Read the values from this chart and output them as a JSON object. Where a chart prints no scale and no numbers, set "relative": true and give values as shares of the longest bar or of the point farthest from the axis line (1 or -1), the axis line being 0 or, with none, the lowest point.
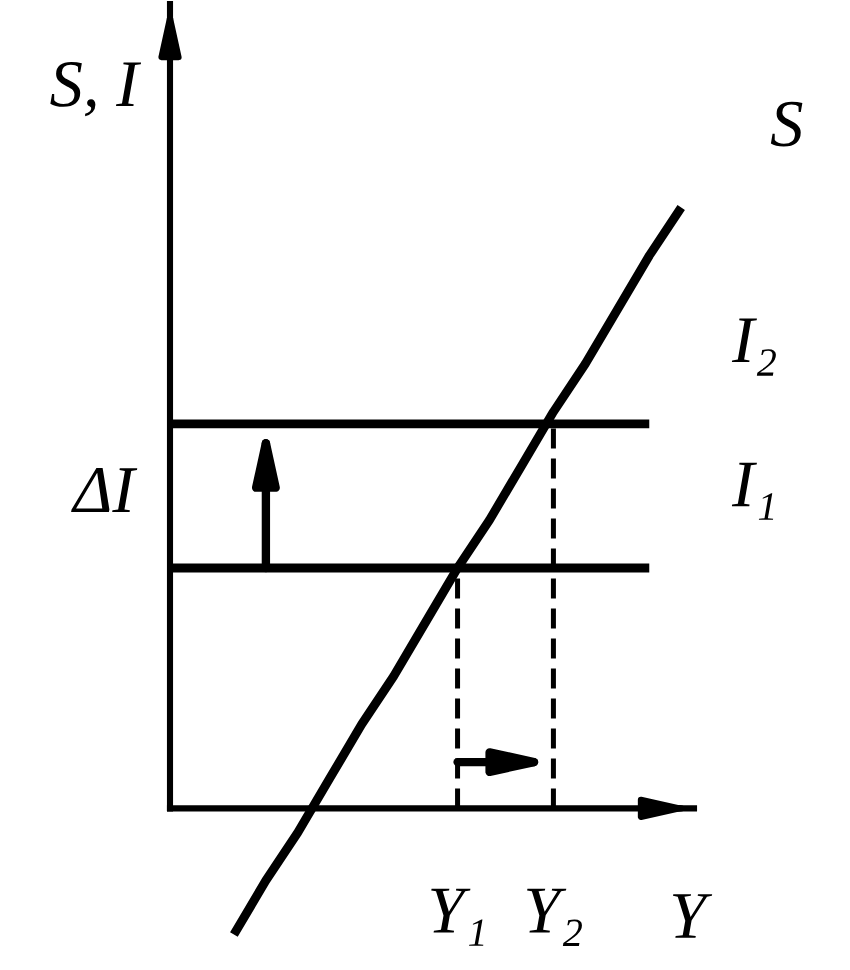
{
  "chart_data": {
    "type": "line",
    "relative": true,
    "xlabel": "Y",
    "ylabel": "S, I",
    "categories": [
      null,
      null,
      null,
      null,
      null,
      null,
      null,
      null,
      null,
      "Y₁",
      null,
      null,
      "Y₂",
      null,
      null,
      null,
      null
    ],
    "series": [
      {
        "name": "S",
        "color": "#000000",
        "values": [
          null,
          null,
          -0.21,
          -0.12,
          -0.04,
          0.05,
          0.14,
          0.22,
          0.31,
          0.4,
          0.48,
          0.57,
          0.66,
          0.74,
          0.83,
          0.92,
          1.0
        ]
      },
      {
        "name": "I₁",
        "color": "#000000",
        "values": [
          0.4,
          0.4,
          0.4,
          0.4,
          0.4,
          0.4,
          0.4,
          0.4,
          0.4,
          0.4,
          0.4,
          0.4,
          0.4,
          0.4,
          0.4,
          0.4,
          null
        ]
      },
      {
        "name": "I₂",
        "color": "#000000",
        "values": [
          0.64,
          0.64,
          0.64,
          0.64,
          0.64,
          0.64,
          0.64,
          0.64,
          0.64,
          0.64,
          0.64,
          0.64,
          0.64,
          0.64,
          0.64,
          0.64,
          null
        ]
      }
    ],
    "ref_lines": [
      {
        "axis": "x",
        "value": "Y₁",
        "line_style": "dashed",
        "color": "#000000"
      },
      {
        "axis": "x",
        "value": "Y₂",
        "line_style": "dashed",
        "color": "#000000"
      }
    ],
    "annotations": [
      "ΔI"
    ]
  }
}
